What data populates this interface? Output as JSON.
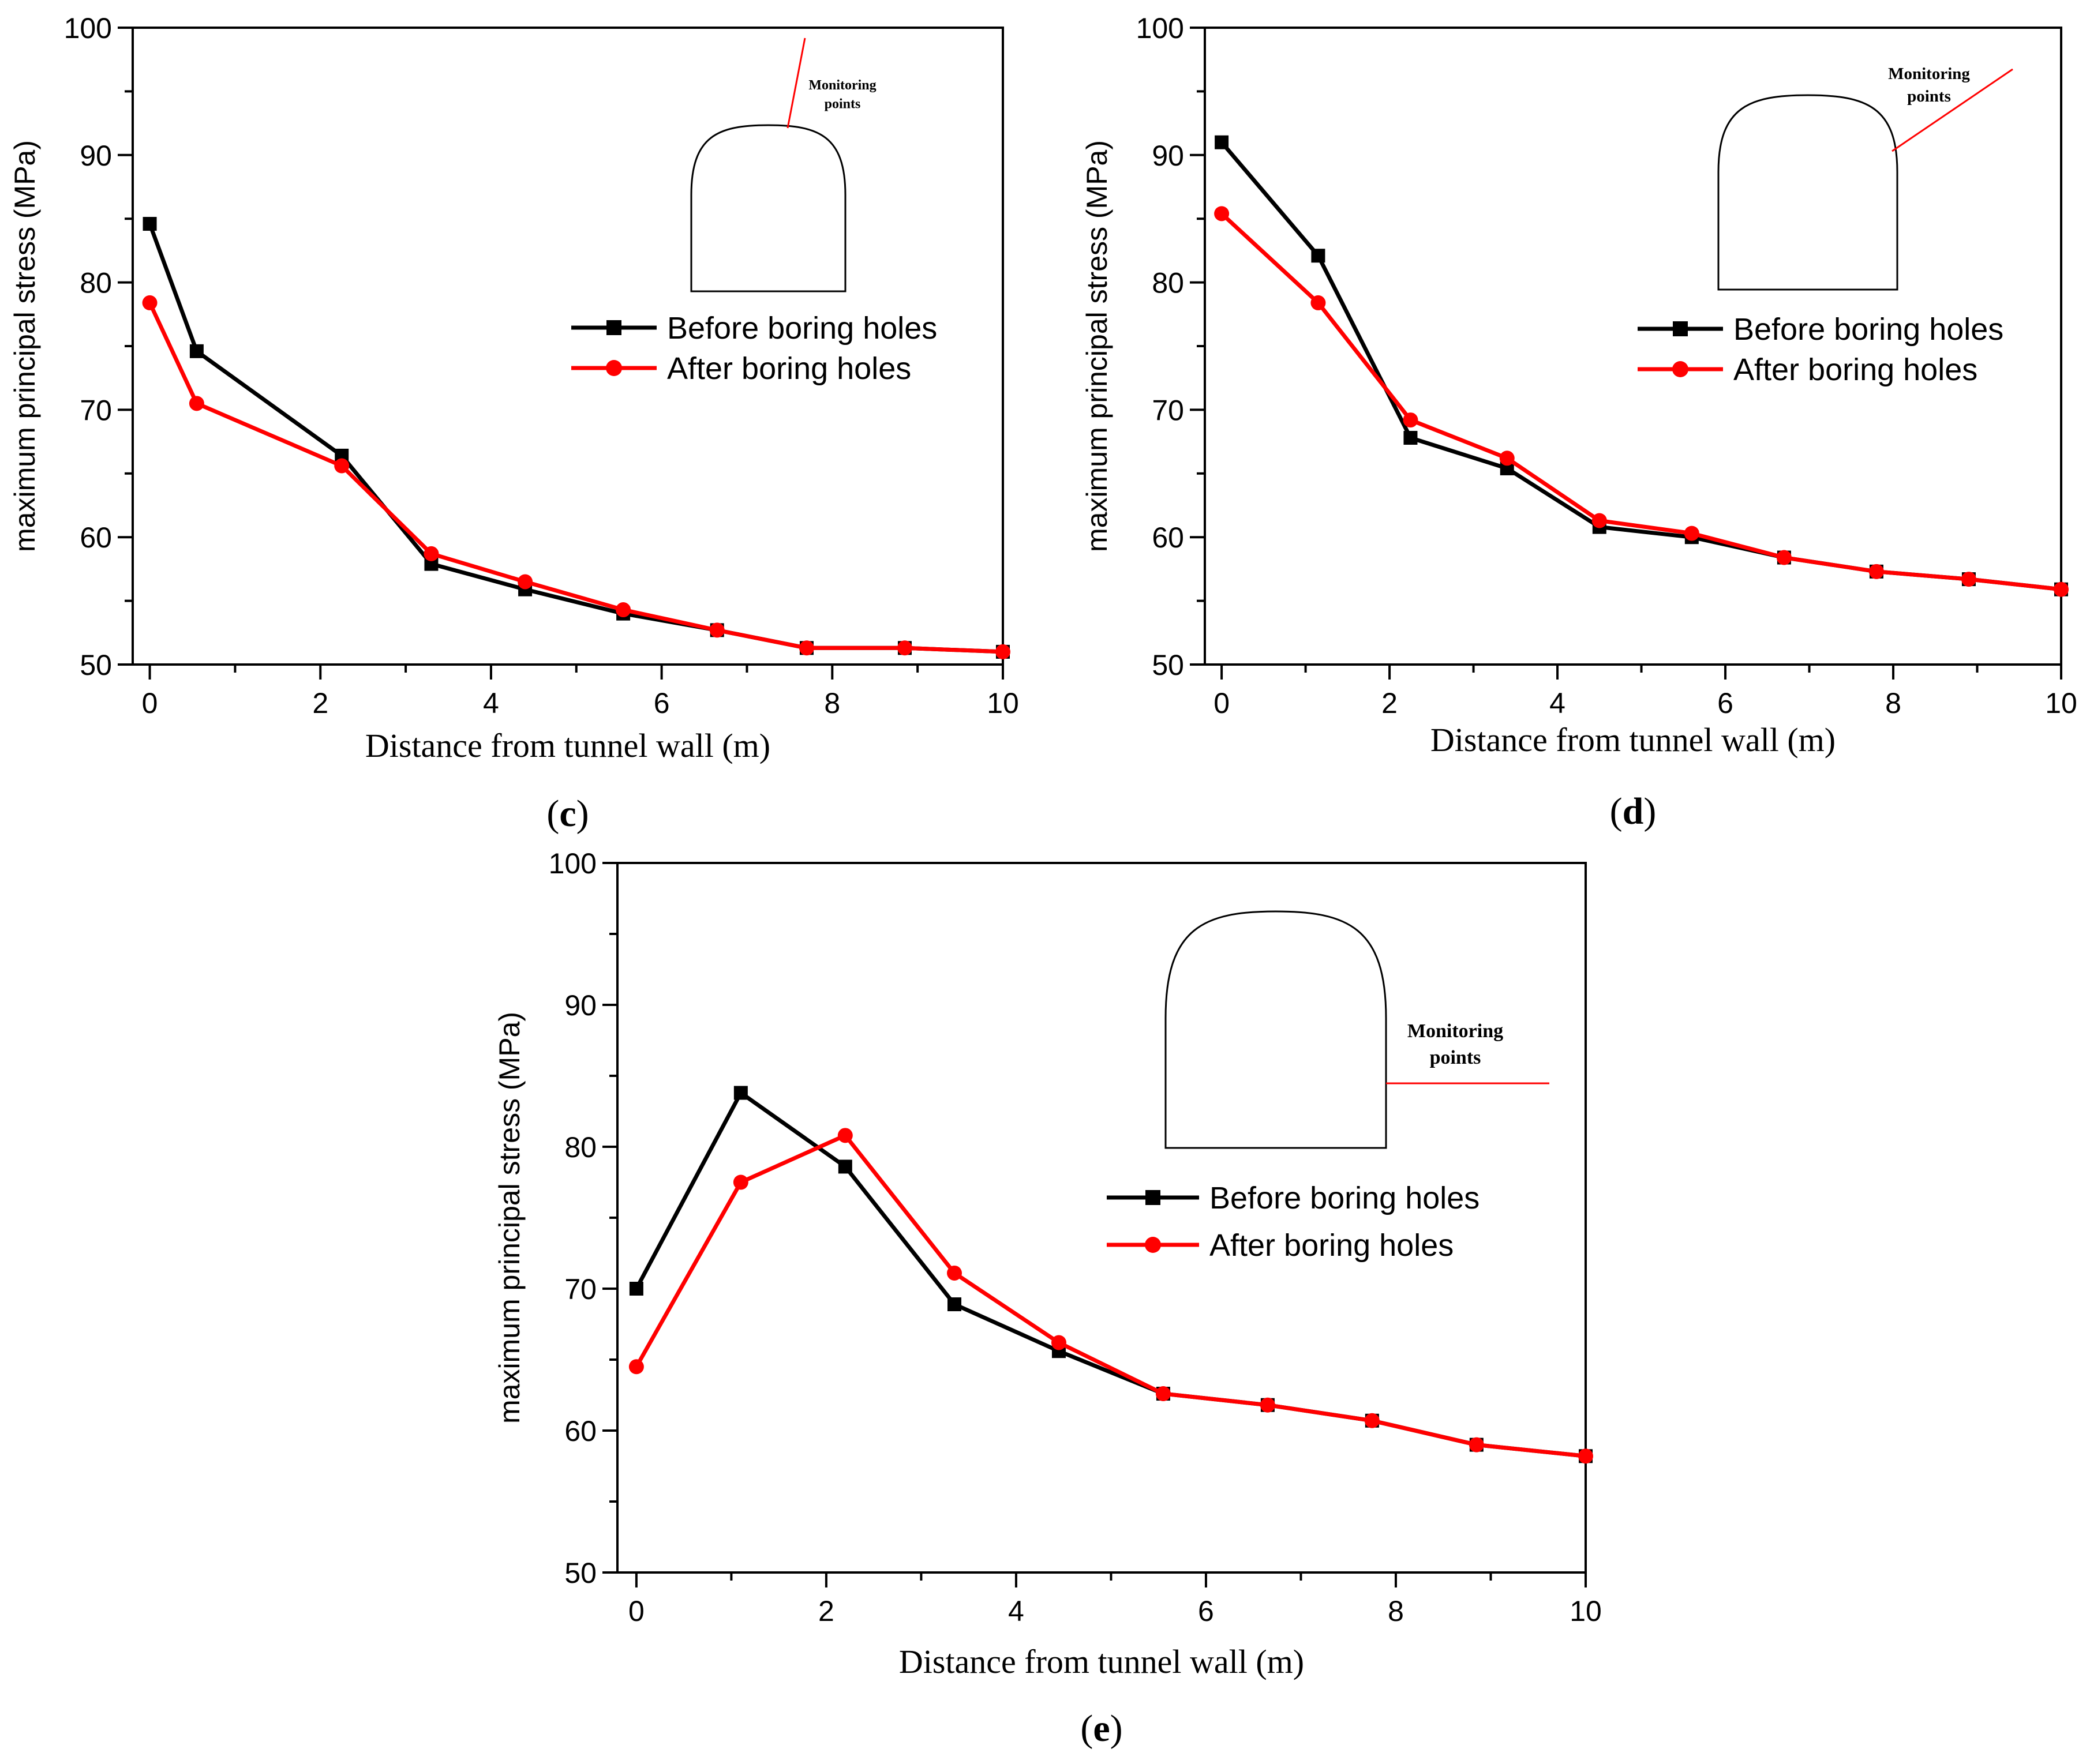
{
  "colors": {
    "before": "#000000",
    "after": "#ff0000"
  },
  "chart_data": [
    {
      "id": "c",
      "type": "line",
      "panel_label": "c",
      "xlabel": "Distance from tunnel wall (m)",
      "ylabel": "maximum principal stress (MPa)",
      "xlim": [
        -0.2,
        10
      ],
      "ylim": [
        50,
        100
      ],
      "xticks": [
        0,
        2,
        4,
        6,
        8,
        10
      ],
      "yticks": [
        50,
        60,
        70,
        80,
        90,
        100
      ],
      "legend_position": "right",
      "inset": {
        "label_line1": "Monitoring",
        "label_line2": "points",
        "monitor": "crown"
      },
      "series": [
        {
          "name": "Before boring holes",
          "marker": "square",
          "color": "#000000",
          "x": [
            0,
            0.55,
            2.25,
            3.3,
            4.4,
            5.55,
            6.65,
            7.7,
            8.85,
            10
          ],
          "y": [
            84.6,
            74.6,
            66.4,
            57.9,
            55.9,
            54.0,
            52.7,
            51.3,
            51.3,
            51.0
          ]
        },
        {
          "name": "After boring holes",
          "marker": "circle",
          "color": "#ff0000",
          "x": [
            0,
            0.55,
            2.25,
            3.3,
            4.4,
            5.55,
            6.65,
            7.7,
            8.85,
            10
          ],
          "y": [
            78.4,
            70.5,
            65.6,
            58.7,
            56.5,
            54.3,
            52.7,
            51.3,
            51.3,
            51.0
          ]
        }
      ]
    },
    {
      "id": "d",
      "type": "line",
      "panel_label": "d",
      "xlabel": "Distance from tunnel wall (m)",
      "ylabel": "maximum principal stress (MPa)",
      "xlim": [
        -0.2,
        10
      ],
      "ylim": [
        50,
        100
      ],
      "xticks": [
        0,
        2,
        4,
        6,
        8,
        10
      ],
      "yticks": [
        50,
        60,
        70,
        80,
        90,
        100
      ],
      "legend_position": "right",
      "inset": {
        "label_line1": "Monitoring",
        "label_line2": "points",
        "monitor": "shoulder"
      },
      "series": [
        {
          "name": "Before boring holes",
          "marker": "square",
          "color": "#000000",
          "x": [
            0,
            1.15,
            2.25,
            3.4,
            4.5,
            5.6,
            6.7,
            7.8,
            8.9,
            10
          ],
          "y": [
            91.0,
            82.1,
            67.8,
            65.4,
            60.8,
            60.0,
            58.4,
            57.3,
            56.7,
            55.9
          ]
        },
        {
          "name": "After boring holes",
          "marker": "circle",
          "color": "#ff0000",
          "x": [
            0,
            1.15,
            2.25,
            3.4,
            4.5,
            5.6,
            6.7,
            7.8,
            8.9,
            10
          ],
          "y": [
            85.4,
            78.4,
            69.2,
            66.2,
            61.3,
            60.3,
            58.4,
            57.3,
            56.7,
            55.9
          ]
        }
      ]
    },
    {
      "id": "e",
      "type": "line",
      "panel_label": "e",
      "xlabel": "Distance from tunnel wall (m)",
      "ylabel": "maximum principal stress (MPa)",
      "xlim": [
        -0.2,
        10
      ],
      "ylim": [
        50,
        100
      ],
      "xticks": [
        0,
        2,
        4,
        6,
        8,
        10
      ],
      "yticks": [
        50,
        60,
        70,
        80,
        90,
        100
      ],
      "legend_position": "right",
      "inset": {
        "label_line1": "Monitoring",
        "label_line2": "points",
        "monitor": "sidewall"
      },
      "series": [
        {
          "name": "Before boring holes",
          "marker": "square",
          "color": "#000000",
          "x": [
            0,
            1.1,
            2.2,
            3.35,
            4.45,
            5.55,
            6.65,
            7.75,
            8.85,
            10
          ],
          "y": [
            70.0,
            83.8,
            78.6,
            68.9,
            65.6,
            62.6,
            61.8,
            60.7,
            59.0,
            58.2
          ]
        },
        {
          "name": "After boring holes",
          "marker": "circle",
          "color": "#ff0000",
          "x": [
            0,
            1.1,
            2.2,
            3.35,
            4.45,
            5.55,
            6.65,
            7.75,
            8.85,
            10
          ],
          "y": [
            64.5,
            77.5,
            80.8,
            71.1,
            66.2,
            62.6,
            61.8,
            60.7,
            59.0,
            58.2
          ]
        }
      ]
    }
  ]
}
